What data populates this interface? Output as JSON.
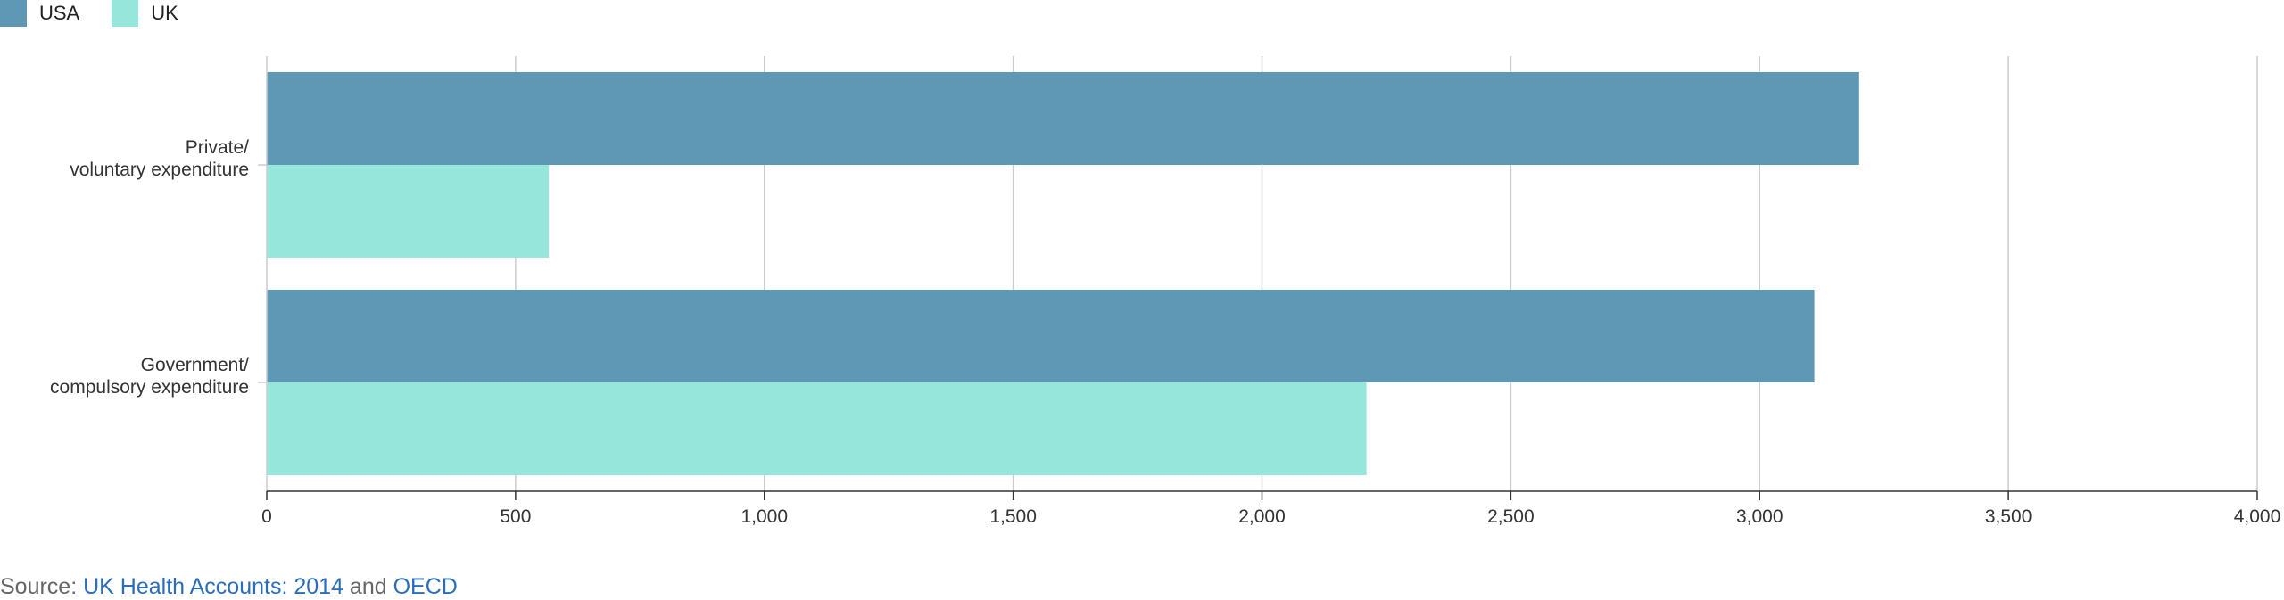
{
  "legend": {
    "usa_label": "USA",
    "uk_label": "UK"
  },
  "colors": {
    "usa": "#5f98b4",
    "uk": "#96e6dc",
    "grid": "#cccccc",
    "axis": "#333333"
  },
  "chart_data": {
    "type": "bar",
    "orientation": "horizontal",
    "categories": [
      "Private/ voluntary expenditure",
      "Government/ compulsory expenditure"
    ],
    "category_label_lines": [
      [
        "Private/",
        "voluntary expenditure"
      ],
      [
        "Government/",
        "compulsory expenditure"
      ]
    ],
    "series": [
      {
        "name": "USA",
        "values": [
          3200,
          3110
        ]
      },
      {
        "name": "UK",
        "values": [
          567,
          2210
        ]
      }
    ],
    "xlim": [
      0,
      4000
    ],
    "xticks": [
      0,
      500,
      1000,
      1500,
      2000,
      2500,
      3000,
      3500,
      4000
    ],
    "xtick_labels": [
      "0",
      "500",
      "1,000",
      "1,500",
      "2,000",
      "2,500",
      "3,000",
      "3,500",
      "4,000"
    ],
    "title": "",
    "xlabel": "",
    "ylabel": "",
    "grid": true,
    "legend_position": "top-left"
  },
  "source": {
    "prefix": "Source: ",
    "link1": "UK Health Accounts: 2014",
    "middle": " and ",
    "link2": "OECD"
  }
}
